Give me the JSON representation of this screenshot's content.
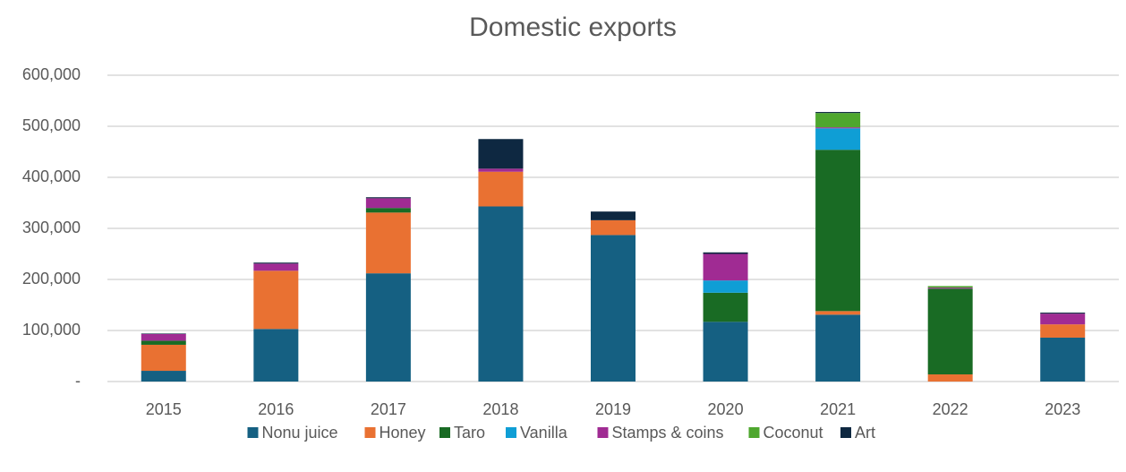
{
  "chart_data": {
    "type": "stacked_bar",
    "title": "Domestic exports",
    "categories": [
      "2015",
      "2016",
      "2017",
      "2018",
      "2019",
      "2020",
      "2021",
      "2022",
      "2023"
    ],
    "series": [
      {
        "name": "Nonu juice",
        "color": "#156082",
        "values": [
          21000,
          103000,
          212000,
          343000,
          287000,
          117000,
          131000,
          0,
          86000
        ]
      },
      {
        "name": "Honey",
        "color": "#e97132",
        "values": [
          51000,
          114000,
          119000,
          68000,
          29000,
          0,
          7000,
          14000,
          26000
        ]
      },
      {
        "name": "Taro",
        "color": "#196b24",
        "values": [
          8000,
          0,
          9000,
          0,
          0,
          57000,
          316000,
          168000,
          0
        ]
      },
      {
        "name": "Vanilla",
        "color": "#0f9ed5",
        "values": [
          0,
          0,
          0,
          0,
          0,
          24000,
          42000,
          0,
          0
        ]
      },
      {
        "name": "Stamps & coins",
        "color": "#a02b93",
        "values": [
          13000,
          14000,
          19000,
          6000,
          0,
          52000,
          2000,
          2000,
          21000
        ]
      },
      {
        "name": "Coconut",
        "color": "#4ea72e",
        "values": [
          0,
          0,
          0,
          0,
          0,
          0,
          28000,
          3000,
          0
        ]
      },
      {
        "name": "Art",
        "color": "#0e2841",
        "values": [
          1000,
          2000,
          2000,
          58000,
          17000,
          3000,
          2000,
          0,
          2000
        ]
      }
    ],
    "ylim": [
      0,
      600000
    ],
    "yticks": [
      {
        "value": 0,
        "label": "-"
      },
      {
        "value": 100000,
        "label": "100,000"
      },
      {
        "value": 200000,
        "label": "200,000"
      },
      {
        "value": 300000,
        "label": "300,000"
      },
      {
        "value": 400000,
        "label": "400,000"
      },
      {
        "value": 500000,
        "label": "500,000"
      },
      {
        "value": 600000,
        "label": "600,000"
      }
    ],
    "grid": true,
    "legend": "bottom"
  }
}
